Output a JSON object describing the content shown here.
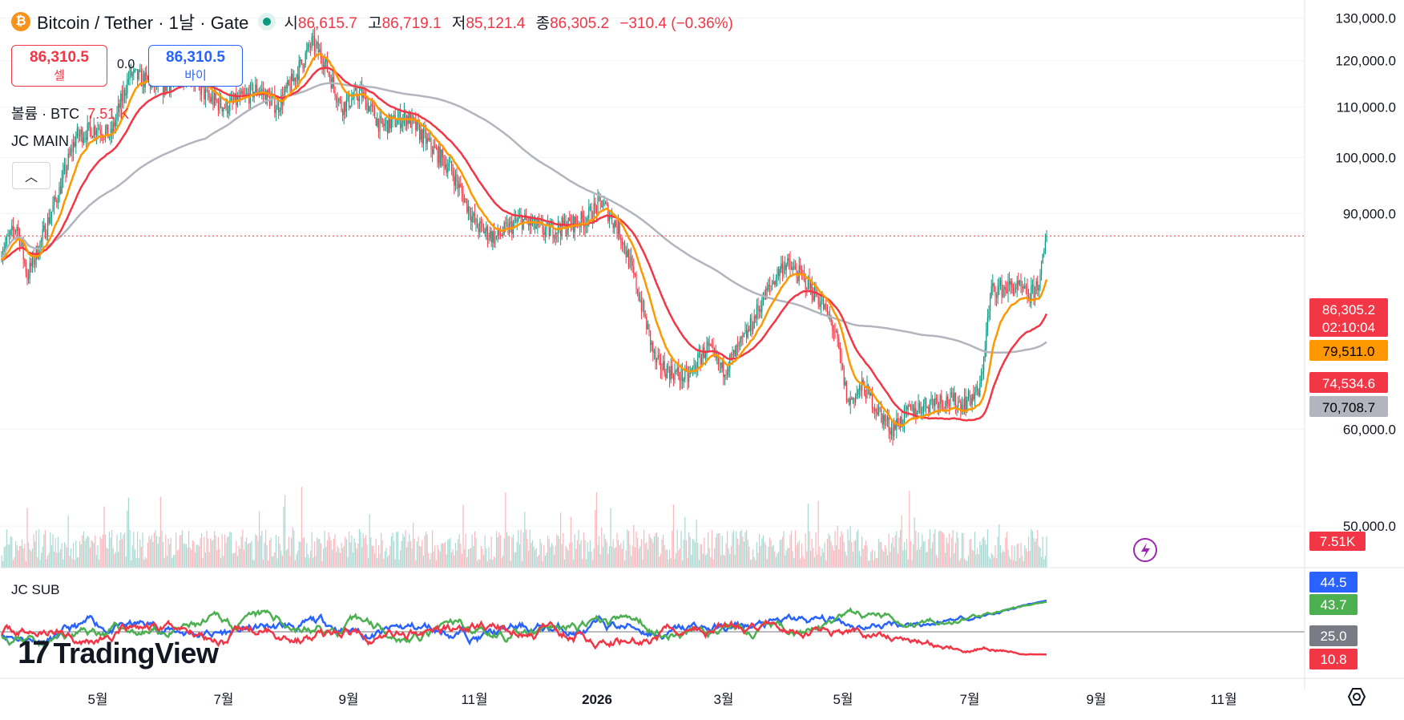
{
  "header": {
    "symbol": "Bitcoin / Tether · 1날 · Gate",
    "coin_icon": "bitcoin-icon",
    "open_label": "시",
    "open": "86,615.7",
    "high_label": "고",
    "high": "86,719.1",
    "low_label": "저",
    "low": "85,121.4",
    "close_label": "종",
    "close": "86,305.2",
    "change": "−310.4 (−0.36%)"
  },
  "trade": {
    "sell_price": "86,310.5",
    "sell_label": "셀",
    "spread": "0.0",
    "buy_price": "86,310.5",
    "buy_label": "바이"
  },
  "volume_legend": {
    "label": "볼륨 · BTC",
    "value": "7.51 K"
  },
  "main_indicator": "JC MAIN",
  "sub_indicator": "JC SUB",
  "logo_text": "TradingView",
  "colors": {
    "up": "#089981",
    "down": "#f23645",
    "ma_fast": "#ff9800",
    "ma_mid": "#f23645",
    "ma_slow": "#b2b5be",
    "blue": "#2962ff",
    "green": "#4caf50"
  },
  "chart_data": [
    {
      "type": "candlestick",
      "title": "Bitcoin / Tether · 1날 · Gate",
      "x_ticks": [
        "5월",
        "7월",
        "9월",
        "11월",
        "2026",
        "3월",
        "5월",
        "7월",
        "9월",
        "11월"
      ],
      "y_ticks": [
        "130,000.0",
        "120,000.0",
        "110,000.0",
        "100,000.0",
        "90,000.0",
        "60,000.0",
        "50,000.0"
      ],
      "ylim": [
        46800,
        132500
      ],
      "log_scale": true,
      "key_points": [
        [
          0,
          84000
        ],
        [
          12,
          88000
        ],
        [
          20,
          80000
        ],
        [
          30,
          85000
        ],
        [
          45,
          94000
        ],
        [
          58,
          104000
        ],
        [
          75,
          106000
        ],
        [
          85,
          104000
        ],
        [
          100,
          117000
        ],
        [
          125,
          114000
        ],
        [
          145,
          118000
        ],
        [
          160,
          112000
        ],
        [
          175,
          110000
        ],
        [
          190,
          112000
        ],
        [
          200,
          114000
        ],
        [
          215,
          110000
        ],
        [
          228,
          116000
        ],
        [
          242,
          124000
        ],
        [
          250,
          121000
        ],
        [
          265,
          110000
        ],
        [
          280,
          113000
        ],
        [
          296,
          106000
        ],
        [
          316,
          108000
        ],
        [
          335,
          102000
        ],
        [
          350,
          98000
        ],
        [
          370,
          88000
        ],
        [
          385,
          86000
        ],
        [
          405,
          89000
        ],
        [
          425,
          87000
        ],
        [
          440,
          88000
        ],
        [
          455,
          89000
        ],
        [
          468,
          92000
        ],
        [
          482,
          87000
        ],
        [
          496,
          78000
        ],
        [
          510,
          68000
        ],
        [
          520,
          67000
        ],
        [
          535,
          66000
        ],
        [
          550,
          70000
        ],
        [
          562,
          67000
        ],
        [
          572,
          69000
        ],
        [
          582,
          72000
        ],
        [
          595,
          77000
        ],
        [
          610,
          82000
        ],
        [
          624,
          80000
        ],
        [
          640,
          76000
        ],
        [
          650,
          72000
        ],
        [
          660,
          63000
        ],
        [
          672,
          65000
        ],
        [
          684,
          62000
        ],
        [
          694,
          60000
        ],
        [
          708,
          62000
        ],
        [
          730,
          63500
        ],
        [
          750,
          63000
        ],
        [
          763,
          64500
        ],
        [
          772,
          78000
        ],
        [
          790,
          78500
        ],
        [
          802,
          77000
        ],
        [
          810,
          79500
        ],
        [
          815,
          86305
        ]
      ],
      "last_price": "86,305.2",
      "countdown": "02:10:04",
      "price_labels": [
        {
          "value": "86,305.2",
          "sub": "02:10:04",
          "series": "last"
        },
        {
          "value": "79,511.0",
          "series": "MA fast"
        },
        {
          "value": "74,534.6",
          "series": "MA mid"
        },
        {
          "value": "70,708.7",
          "series": "MA slow"
        }
      ],
      "ma_last": {
        "fast": 79511.0,
        "mid": 74534.6,
        "slow": 70708.7
      },
      "volume_last": "7.51K"
    },
    {
      "type": "line",
      "title": "JC SUB",
      "level_line": 25.0,
      "series_last": [
        {
          "color": "#2962ff",
          "value": "44.5"
        },
        {
          "color": "#4caf50",
          "value": "43.7"
        },
        {
          "color": "#f23645",
          "value": "10.8"
        }
      ],
      "level_label": "25.0"
    }
  ]
}
